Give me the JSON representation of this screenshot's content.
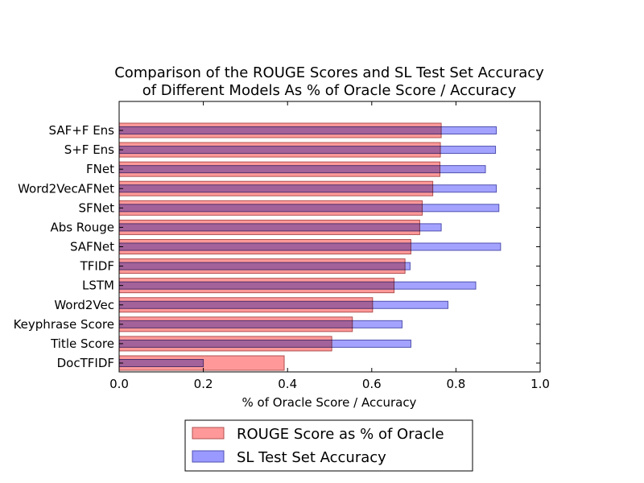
{
  "chart_data": {
    "type": "bar",
    "orientation": "horizontal",
    "title": [
      "Comparison of the ROUGE Scores and SL Test Set Accuracy",
      "of Different Models As % of Oracle Score / Accuracy"
    ],
    "xlabel": "% of Oracle Score / Accuracy",
    "ylabel": "",
    "xlim": [
      0.0,
      1.0
    ],
    "xticks": [
      "0.0",
      "0.2",
      "0.4",
      "0.6",
      "0.8",
      "1.0"
    ],
    "categories": [
      "SAF+F Ens",
      "S+F Ens",
      "FNet",
      "Word2VecAFNet",
      "SFNet",
      "Abs Rouge",
      "SAFNet",
      "TFIDF",
      "LSTM",
      "Word2Vec",
      "Keyphrase Score",
      "Title Score",
      "DocTFIDF"
    ],
    "series": [
      {
        "name": "ROUGE Score as % of Oracle",
        "color": "#ff9999",
        "edge_color": "#b05050",
        "values": [
          0.765,
          0.763,
          0.762,
          0.745,
          0.72,
          0.714,
          0.693,
          0.679,
          0.653,
          0.602,
          0.554,
          0.505,
          0.392
        ]
      },
      {
        "name": "SL Test Set Accuracy",
        "color": "#9999ff",
        "edge_color": "#5050b0",
        "values": [
          0.896,
          0.894,
          0.87,
          0.896,
          0.902,
          0.765,
          0.906,
          0.691,
          0.847,
          0.781,
          0.672,
          0.693,
          0.2
        ]
      }
    ],
    "legend": {
      "placement": "bottom-center-below-axes"
    },
    "grid": false
  }
}
